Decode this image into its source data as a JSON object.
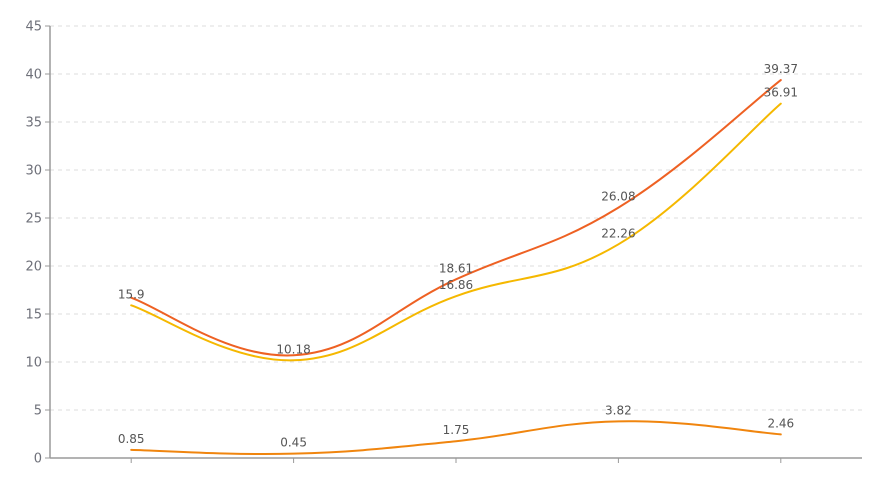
{
  "chart_data": {
    "type": "line",
    "title": "",
    "xlabel": "",
    "ylabel": "",
    "categories": [
      "",
      "",
      "",
      "",
      ""
    ],
    "ylim": [
      0,
      45
    ],
    "yticks": [
      0,
      5,
      10,
      15,
      20,
      25,
      30,
      35,
      40,
      45
    ],
    "grid": true,
    "smooth": true,
    "series": [
      {
        "color": "#ee6123",
        "values": [
          16.7,
          10.7,
          18.61,
          26.08,
          39.37
        ],
        "labels": [
          "",
          "",
          "18.61",
          "26.08",
          "39.37"
        ]
      },
      {
        "color": "#f5b800",
        "values": [
          15.9,
          10.18,
          16.86,
          22.26,
          36.91
        ],
        "labels": [
          "15.9",
          "10.18",
          "16.86",
          "22.26",
          "36.91"
        ]
      },
      {
        "color": "#f0850e",
        "values": [
          0.85,
          0.45,
          1.75,
          3.82,
          2.46
        ],
        "labels": [
          "0.85",
          "0.45",
          "1.75",
          "3.82",
          "2.46"
        ]
      }
    ]
  }
}
